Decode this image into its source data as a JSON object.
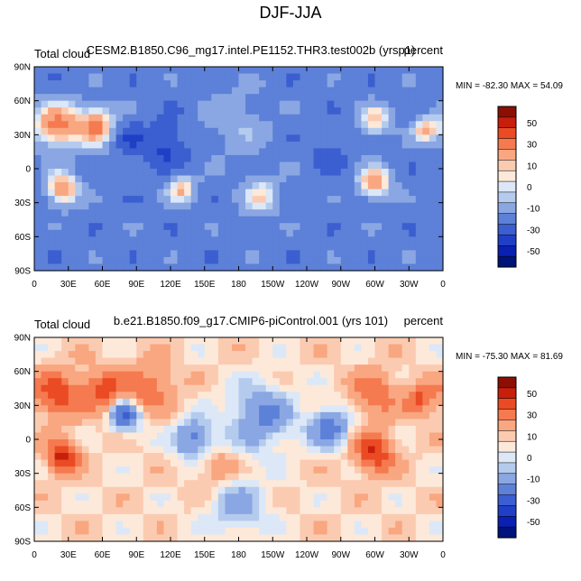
{
  "figure": {
    "title": "DJF-JJA"
  },
  "colorbar": {
    "tick_labels": [
      "50",
      "30",
      "10",
      "0",
      "-10",
      "-30",
      "-50"
    ],
    "colors": [
      "#8c0f05",
      "#c81e0c",
      "#ea4b24",
      "#f57a50",
      "#f9a781",
      "#fbcbb1",
      "#fde9d9",
      "#dce8f7",
      "#b4cbee",
      "#8aa7e3",
      "#5d80d8",
      "#3b5ed0",
      "#1f3fc6",
      "#0a20b3",
      "#00137a"
    ]
  },
  "chart_data": [
    {
      "type": "heatmap",
      "left_title": "Total cloud",
      "center_title": "CESM2.B1850.C96_mg17.intel.PE1152.THR3.test002b (yrsp1)",
      "right_title": "percent",
      "min_label": "MIN = -82.30",
      "max_label": "MAX =  54.09",
      "min": -82.3,
      "max": 54.09,
      "lat_range": [
        -90,
        90
      ],
      "lon_range": [
        0,
        360
      ],
      "x_tick_labels": [
        "0",
        "30E",
        "60E",
        "90E",
        "120E",
        "150E",
        "180",
        "150W",
        "120W",
        "90W",
        "60W",
        "30W",
        "0"
      ],
      "y_tick_labels": [
        "90N",
        "60N",
        "30N",
        "0",
        "30S",
        "60S",
        "90S"
      ],
      "levels": [
        -60,
        -50,
        -40,
        -30,
        -20,
        -10,
        -5,
        0,
        5,
        10,
        20,
        30,
        40,
        50,
        60
      ],
      "background_value": -25,
      "field_features": [
        {
          "lon": 20,
          "lat": 38,
          "value": 30,
          "spread": 14
        },
        {
          "lon": 55,
          "lat": 38,
          "value": 25,
          "spread": 12
        },
        {
          "lon": 80,
          "lat": 28,
          "value": -40,
          "spread": 10
        },
        {
          "lon": 115,
          "lat": 20,
          "value": -45,
          "spread": 14
        },
        {
          "lon": 25,
          "lat": -18,
          "value": 28,
          "spread": 10
        },
        {
          "lon": 130,
          "lat": -18,
          "value": 12,
          "spread": 9
        },
        {
          "lon": 200,
          "lat": -25,
          "value": 5,
          "spread": 12
        },
        {
          "lon": 300,
          "lat": -12,
          "value": 25,
          "spread": 10
        },
        {
          "lon": 300,
          "lat": 42,
          "value": 10,
          "spread": 10
        },
        {
          "lon": 345,
          "lat": 35,
          "value": 15,
          "spread": 8
        },
        {
          "lon": 180,
          "lat": 40,
          "value": -10,
          "spread": 20
        },
        {
          "lon": 260,
          "lat": 12,
          "value": -35,
          "spread": 12
        }
      ]
    },
    {
      "type": "heatmap",
      "left_title": "Total cloud",
      "center_title": "b.e21.B1850.f09_g17.CMIP6-piControl.001 (yrs 101)",
      "right_title": "percent",
      "min_label": "MIN = -75.30",
      "max_label": "MAX =  81.69",
      "min": -75.3,
      "max": 81.69,
      "lat_range": [
        -90,
        90
      ],
      "lon_range": [
        0,
        360
      ],
      "x_tick_labels": [
        "0",
        "30E",
        "60E",
        "90E",
        "120E",
        "150E",
        "180",
        "150W",
        "120W",
        "90W",
        "60W",
        "30W",
        "0"
      ],
      "y_tick_labels": [
        "90N",
        "60N",
        "30N",
        "0",
        "30S",
        "60S",
        "90S"
      ],
      "levels": [
        -60,
        -50,
        -40,
        -30,
        -20,
        -10,
        -5,
        0,
        5,
        10,
        20,
        30,
        40,
        50,
        60
      ],
      "background_value": 5,
      "field_features": [
        {
          "lon": 20,
          "lat": 40,
          "value": 40,
          "spread": 14
        },
        {
          "lon": 60,
          "lat": 42,
          "value": 35,
          "spread": 14
        },
        {
          "lon": 100,
          "lat": 45,
          "value": 30,
          "spread": 16
        },
        {
          "lon": 25,
          "lat": -15,
          "value": 50,
          "spread": 10
        },
        {
          "lon": 300,
          "lat": -12,
          "value": 45,
          "spread": 12
        },
        {
          "lon": 300,
          "lat": 40,
          "value": 30,
          "spread": 14
        },
        {
          "lon": 340,
          "lat": 35,
          "value": 35,
          "spread": 10
        },
        {
          "lon": 80,
          "lat": 22,
          "value": -40,
          "spread": 10
        },
        {
          "lon": 200,
          "lat": 20,
          "value": -25,
          "spread": 20
        },
        {
          "lon": 180,
          "lat": -60,
          "value": -15,
          "spread": 18
        },
        {
          "lon": 260,
          "lat": 10,
          "value": -30,
          "spread": 12
        },
        {
          "lon": 140,
          "lat": 0,
          "value": -30,
          "spread": 12
        },
        {
          "lon": 160,
          "lat": -25,
          "value": 20,
          "spread": 12
        }
      ]
    }
  ]
}
